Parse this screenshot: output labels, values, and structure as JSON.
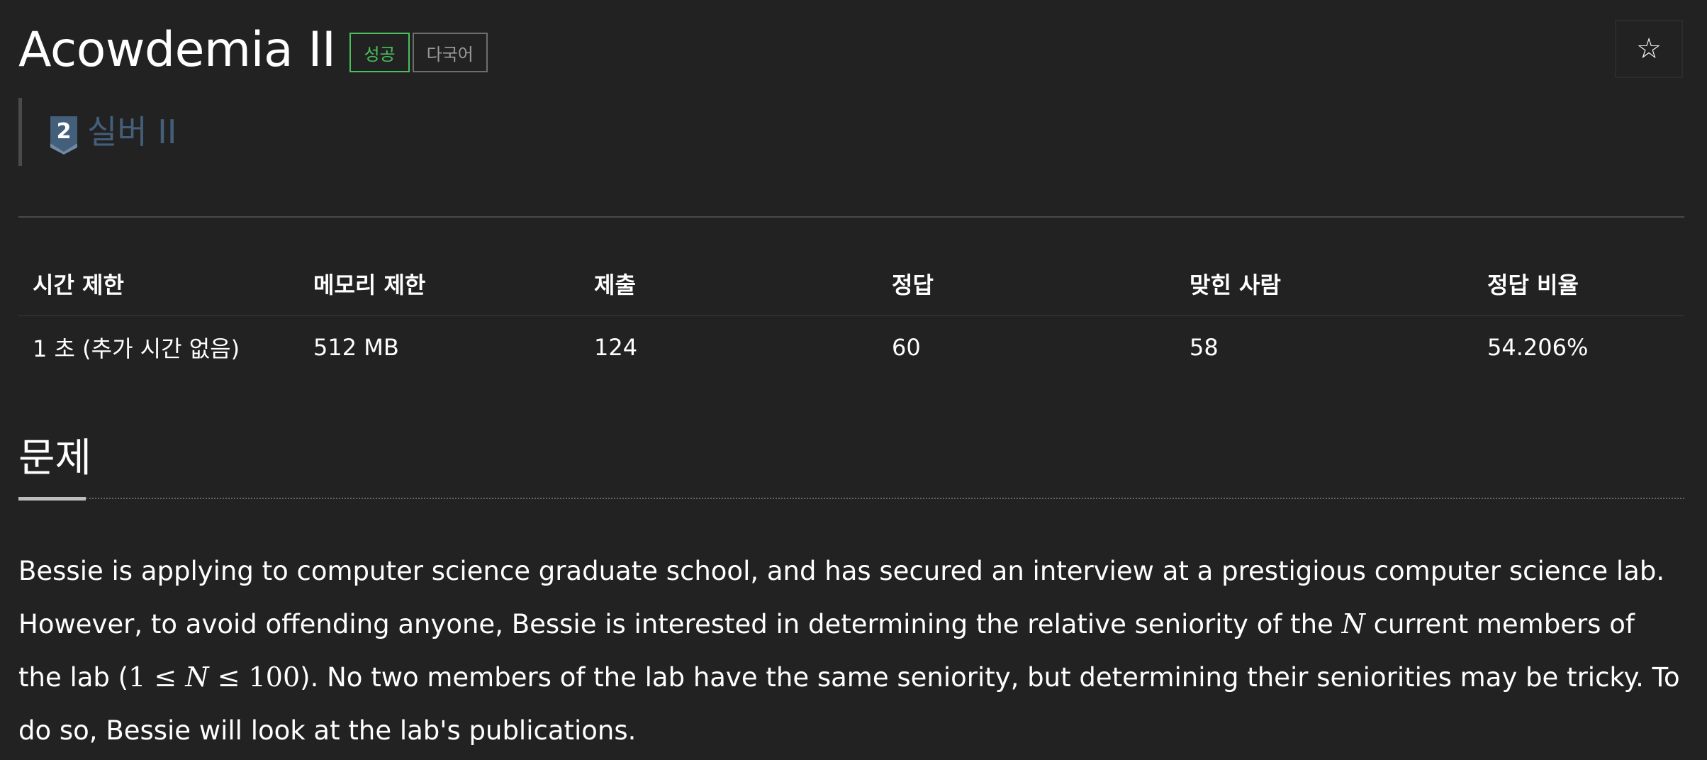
{
  "problem": {
    "title": "Acowdemia II",
    "badges": {
      "success": "성공",
      "multilang": "다국어"
    },
    "tier": {
      "number": "2",
      "label": "실버 II",
      "color": "#435f7a"
    },
    "star_icon": "star-outline-icon"
  },
  "limits_table": {
    "headers": [
      "시간 제한",
      "메모리 제한",
      "제출",
      "정답",
      "맞힌 사람",
      "정답 비율"
    ],
    "row": [
      "1 초 (추가 시간 없음)",
      "512 MB",
      "124",
      "60",
      "58",
      "54.206%"
    ]
  },
  "section": {
    "title": "문제"
  },
  "statement": {
    "p1": "Bessie is applying to computer science graduate school, and has secured an interview at a prestigious computer science lab. However, to avoid offending anyone, Bessie is interested in determining the relative seniority of the ",
    "var_n": "N",
    "p2": " current members of the lab (",
    "math_one": "1",
    "leq": "≤",
    "math_hundred": "100",
    "p3": "). No two members of the lab have the same seniority, but determining their seniorities may be tricky. To do so, Bessie will look at the lab's publications."
  },
  "colors": {
    "background": "#222222",
    "success": "#49c05c",
    "silver_tier": "#435f7a"
  }
}
